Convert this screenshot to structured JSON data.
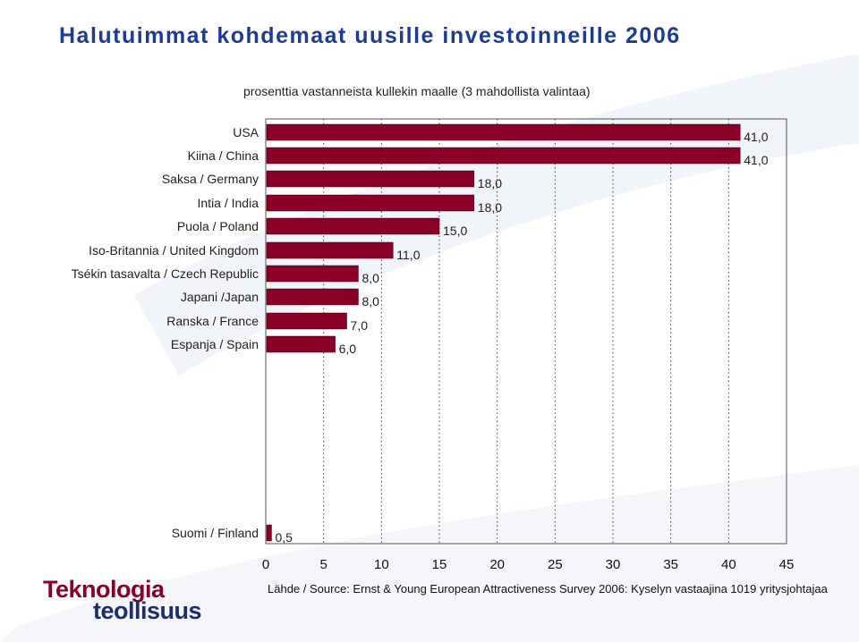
{
  "header": {
    "title": "Halutuimmat kohdemaat uusille investoinneille 2006",
    "subtitle": "prosenttia vastanneista kullekin maalle (3 mahdollista valintaa)"
  },
  "chart_data": {
    "type": "bar",
    "orientation": "horizontal",
    "categories": [
      "USA",
      "Kiina / China",
      "Saksa / Germany",
      "Intia / India",
      "Puola / Poland",
      "Iso-Britannia / United Kingdom",
      "Tsékin tasavalta / Czech Republic",
      "Japani /Japan",
      "Ranska / France",
      "Espanja / Spain",
      "Suomi / Finland"
    ],
    "values": [
      41.0,
      41.0,
      18.0,
      18.0,
      15.0,
      11.0,
      8.0,
      8.0,
      7.0,
      6.0,
      0.5
    ],
    "value_labels": [
      "41,0",
      "41,0",
      "18,0",
      "18,0",
      "15,0",
      "11,0",
      "8,0",
      "8,0",
      "7,0",
      "6,0",
      "0,5"
    ],
    "xlim": [
      0,
      45
    ],
    "xticks": [
      "0",
      "5",
      "10",
      "15",
      "20",
      "25",
      "30",
      "35",
      "40",
      "45"
    ],
    "grid": "vertical dotted",
    "bar_color": "#8b0026"
  },
  "logo": {
    "line1": "Teknologia",
    "line2": "teollisuus"
  },
  "footer": {
    "source": "Lähde / Source: Ernst & Young European Attractiveness Survey 2006: Kyselyn vastaajina 1019 yritysjohtajaa"
  }
}
